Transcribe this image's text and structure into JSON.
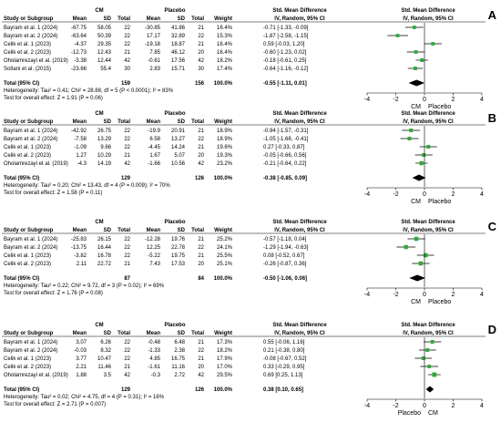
{
  "columns": {
    "study": "Study or Subgroup",
    "group1": "CM",
    "group2": "Placebo",
    "mean": "Mean",
    "sd": "SD",
    "total": "Total",
    "weight": "Weight",
    "smd_header": "Std. Mean Difference",
    "method": "IV, Random, 95% CI"
  },
  "chart_data": [
    {
      "type": "forest",
      "panel": "A",
      "rows": [
        {
          "study": "Bayram et al. 1 (2024)",
          "m1": "-67.75",
          "sd1": "58.05",
          "n1": "22",
          "m2": "-30.85",
          "sd2": "41.86",
          "n2": "21",
          "weight": "16.4%",
          "ci_text": "-0.71 [-1.33, -0.09]",
          "smd": -0.71,
          "lo": -1.33,
          "hi": -0.09
        },
        {
          "study": "Bayram et al. 2 (2024)",
          "m1": "-63.64",
          "sd1": "50.39",
          "n1": "22",
          "m2": "17.17",
          "sd2": "32.89",
          "n2": "22",
          "weight": "15.3%",
          "ci_text": "-1.87 [-2.58, -1.15]",
          "smd": -1.87,
          "lo": -2.58,
          "hi": -1.15
        },
        {
          "study": "Celik et al. 1 (2023)",
          "m1": "-4.37",
          "sd1": "29.35",
          "n1": "22",
          "m2": "-19.18",
          "sd2": "18.87",
          "n2": "21",
          "weight": "16.4%",
          "ci_text": "0.59 [-0.03, 1.20]",
          "smd": 0.59,
          "lo": -0.03,
          "hi": 1.2
        },
        {
          "study": "Celik et al. 2 (2023)",
          "m1": "-12.73",
          "sd1": "12.43",
          "n1": "21",
          "m2": "7.85",
          "sd2": "46.12",
          "n2": "20",
          "weight": "16.4%",
          "ci_text": "-0.60 [-1.23, 0.02]",
          "smd": -0.6,
          "lo": -1.23,
          "hi": 0.02
        },
        {
          "study": "Oholamrezayi et al. (2019)",
          "m1": "-3.38",
          "sd1": "12.44",
          "n1": "42",
          "m2": "-0.61",
          "sd2": "17.56",
          "n2": "42",
          "weight": "18.2%",
          "ci_text": "-0.18 [-0.61, 0.25]",
          "smd": -0.18,
          "lo": -0.61,
          "hi": 0.25
        },
        {
          "study": "Soltani et al. (2015)",
          "m1": "-23.66",
          "sd1": "55.4",
          "n1": "30",
          "m2": "2.83",
          "sd2": "15.71",
          "n2": "30",
          "weight": "17.4%",
          "ci_text": "-0.64 [-1.16, -0.12]",
          "smd": -0.64,
          "lo": -1.16,
          "hi": -0.12
        }
      ],
      "total": {
        "label": "Total (95% CI)",
        "n1": "159",
        "n2": "156",
        "weight": "100.0%",
        "ci_text": "-0.55 [-1.11, 0.01]",
        "smd": -0.55,
        "lo": -1.11,
        "hi": 0.01
      },
      "heterogeneity": "Heterogeneity: Tau² = 0.41; Chi² = 28.88, df = 5 (P < 0.0001); I² = 83%",
      "overall_effect": "Test for overall effect: Z = 1.91 (P = 0.06)",
      "xlim": [
        -4,
        4
      ],
      "ticks": [
        "-4",
        "-2",
        "0",
        "2",
        "4"
      ],
      "axis_labels": [
        "CM",
        "Placebo"
      ]
    },
    {
      "type": "forest",
      "panel": "B",
      "rows": [
        {
          "study": "Bayram et al. 1 (2024)",
          "m1": "-42.92",
          "sd1": "26.75",
          "n1": "22",
          "m2": "-19.9",
          "sd2": "20.91",
          "n2": "21",
          "weight": "18.9%",
          "ci_text": "-0.94 [-1.57, -0.31]",
          "smd": -0.94,
          "lo": -1.57,
          "hi": -0.31
        },
        {
          "study": "Bayram et al. 2 (2024)",
          "m1": "-7.58",
          "sd1": "13.29",
          "n1": "22",
          "m2": "6.58",
          "sd2": "13.27",
          "n2": "22",
          "weight": "18.9%",
          "ci_text": "-1.05 [-1.68, -0.41]",
          "smd": -1.05,
          "lo": -1.68,
          "hi": -0.41
        },
        {
          "study": "Celik et al. 1 (2023)",
          "m1": "-1.09",
          "sd1": "9.66",
          "n1": "22",
          "m2": "-4.45",
          "sd2": "14.24",
          "n2": "21",
          "weight": "19.6%",
          "ci_text": "0.27 [-0.33, 0.87]",
          "smd": 0.27,
          "lo": -0.33,
          "hi": 0.87
        },
        {
          "study": "Celik et al. 2 (2023)",
          "m1": "1.27",
          "sd1": "10.29",
          "n1": "21",
          "m2": "1.67",
          "sd2": "5.07",
          "n2": "20",
          "weight": "19.3%",
          "ci_text": "-0.05 [-0.66, 0.56]",
          "smd": -0.05,
          "lo": -0.66,
          "hi": 0.56
        },
        {
          "study": "Oholamrezayi et al. (2019)",
          "m1": "-4.3",
          "sd1": "14.19",
          "n1": "42",
          "m2": "-1.66",
          "sd2": "10.56",
          "n2": "42",
          "weight": "23.2%",
          "ci_text": "-0.21 [-0.64, 0.22]",
          "smd": -0.21,
          "lo": -0.64,
          "hi": 0.22
        }
      ],
      "total": {
        "label": "Total (95% CI)",
        "n1": "129",
        "n2": "126",
        "weight": "100.0%",
        "ci_text": "-0.38 [-0.85, 0.09]",
        "smd": -0.38,
        "lo": -0.85,
        "hi": 0.09
      },
      "heterogeneity": "Heterogeneity: Tau² = 0.20; Chi² = 13.43, df = 4 (P = 0.009); I² = 70%",
      "overall_effect": "Test for overall effect: Z = 1.58 (P = 0.11)",
      "xlim": [
        -4,
        4
      ],
      "ticks": [
        "-4",
        "-2",
        "0",
        "2",
        "4"
      ],
      "axis_labels": [
        "CM",
        "Placebo"
      ]
    },
    {
      "type": "forest",
      "panel": "C",
      "rows": [
        {
          "study": "Bayram et al. 1 (2024)",
          "m1": "-25.83",
          "sd1": "26.15",
          "n1": "22",
          "m2": "-12.28",
          "sd2": "19.76",
          "n2": "21",
          "weight": "25.2%",
          "ci_text": "-0.57 [-1.18, 0.04]",
          "smd": -0.57,
          "lo": -1.18,
          "hi": 0.04
        },
        {
          "study": "Bayram et al. 2 (2024)",
          "m1": "-13.75",
          "sd1": "16.44",
          "n1": "22",
          "m2": "12.25",
          "sd2": "22.78",
          "n2": "22",
          "weight": "24.1%",
          "ci_text": "-1.29 [-1.94, -0.63]",
          "smd": -1.29,
          "lo": -1.94,
          "hi": -0.63
        },
        {
          "study": "Celik et al. 1 (2023)",
          "m1": "-3.82",
          "sd1": "16.78",
          "n1": "22",
          "m2": "-5.22",
          "sd2": "19.75",
          "n2": "21",
          "weight": "25.5%",
          "ci_text": "0.08 [-0.52, 0.67]",
          "smd": 0.08,
          "lo": -0.52,
          "hi": 0.67
        },
        {
          "study": "Celik et al. 2 (2023)",
          "m1": "2.11",
          "sd1": "22.72",
          "n1": "21",
          "m2": "7.43",
          "sd2": "17.53",
          "n2": "20",
          "weight": "25.1%",
          "ci_text": "-0.26 [-0.87, 0.36]",
          "smd": -0.26,
          "lo": -0.87,
          "hi": 0.36
        }
      ],
      "total": {
        "label": "Total (95% CI)",
        "n1": "87",
        "n2": "84",
        "weight": "100.0%",
        "ci_text": "-0.50 [-1.06, 0.06]",
        "smd": -0.5,
        "lo": -1.06,
        "hi": 0.06
      },
      "heterogeneity": "Heterogeneity: Tau² = 0.22; Chi² = 9.72, df = 3 (P = 0.02); I² = 69%",
      "overall_effect": "Test for overall effect: Z = 1.76 (P = 0.08)",
      "xlim": [
        -4,
        4
      ],
      "ticks": [
        "-4",
        "-2",
        "0",
        "2",
        "4"
      ],
      "axis_labels": [
        "CM",
        "Placebo"
      ]
    },
    {
      "type": "forest",
      "panel": "D",
      "rows": [
        {
          "study": "Bayram et al. 1 (2024)",
          "m1": "3.07",
          "sd1": "6.26",
          "n1": "22",
          "m2": "-0.48",
          "sd2": "6.48",
          "n2": "21",
          "weight": "17.3%",
          "ci_text": "0.55 [-0.06, 1.16]",
          "smd": 0.55,
          "lo": -0.06,
          "hi": 1.16
        },
        {
          "study": "Bayram et al. 2 (2024)",
          "m1": "-0.03",
          "sd1": "8.32",
          "n1": "22",
          "m2": "-1.33",
          "sd2": "2.38",
          "n2": "22",
          "weight": "18.2%",
          "ci_text": "0.21 [-0.38, 0.80]",
          "smd": 0.21,
          "lo": -0.38,
          "hi": 0.8
        },
        {
          "study": "Celik et al. 1 (2023)",
          "m1": "3.77",
          "sd1": "10.47",
          "n1": "22",
          "m2": "4.85",
          "sd2": "16.75",
          "n2": "21",
          "weight": "17.9%",
          "ci_text": "-0.08 [-0.67, 0.52]",
          "smd": -0.08,
          "lo": -0.67,
          "hi": 0.52
        },
        {
          "study": "Celik et al. 2 (2023)",
          "m1": "2.21",
          "sd1": "11.46",
          "n1": "21",
          "m2": "-1.61",
          "sd2": "11.16",
          "n2": "20",
          "weight": "17.0%",
          "ci_text": "0.33 [-0.29, 0.95]",
          "smd": 0.33,
          "lo": -0.29,
          "hi": 0.95
        },
        {
          "study": "Oholamrezayi et al. (2019)",
          "m1": "1.88",
          "sd1": "3.5",
          "n1": "42",
          "m2": "-0.3",
          "sd2": "2.72",
          "n2": "42",
          "weight": "29.5%",
          "ci_text": "0.69 [0.25, 1.13]",
          "smd": 0.69,
          "lo": 0.25,
          "hi": 1.13
        }
      ],
      "total": {
        "label": "Total (95% CI)",
        "n1": "129",
        "n2": "126",
        "weight": "100.0%",
        "ci_text": "0.38 [0.10, 0.65]",
        "smd": 0.38,
        "lo": 0.1,
        "hi": 0.65
      },
      "heterogeneity": "Heterogeneity: Tau² = 0.02; Chi² = 4.75, df = 4 (P = 0.31); I² = 16%",
      "overall_effect": "Test for overall effect: Z = 2.71 (P = 0.007)",
      "xlim": [
        -4,
        4
      ],
      "ticks": [
        "-4",
        "-2",
        "0",
        "2",
        "4"
      ],
      "axis_labels": [
        "Placebo",
        "CM"
      ]
    }
  ],
  "colors": {
    "marker": "#2eaa38",
    "diamond": "#000000",
    "line": "#000000"
  }
}
